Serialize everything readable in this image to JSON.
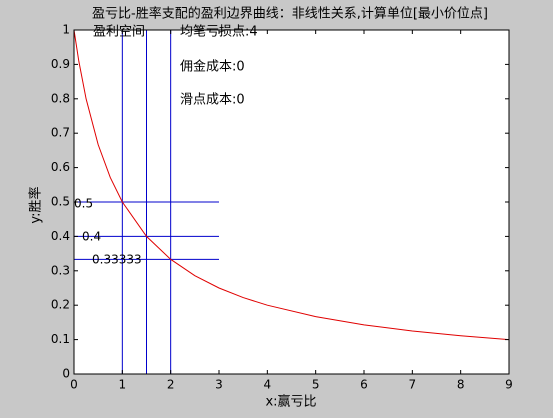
{
  "chart_data": {
    "type": "line",
    "title": "盈亏比-胜率支配的盈利边界曲线：非线性关系,计算单位[最小价位点]",
    "xlabel": "x:赢亏比",
    "ylabel": "y:胜率",
    "x": [
      0,
      0.1,
      0.25,
      0.5,
      0.75,
      1,
      1.5,
      2,
      2.5,
      3,
      3.5,
      4,
      5,
      6,
      7,
      8,
      9
    ],
    "series": [
      {
        "color": "#e00000",
        "values": [
          1,
          0.9091,
          0.8,
          0.6667,
          0.5714,
          0.5,
          0.4,
          0.3333,
          0.2857,
          0.25,
          0.2222,
          0.2,
          0.1667,
          0.1429,
          0.125,
          0.1111,
          0.1
        ]
      }
    ],
    "vlines": [
      1,
      1.5,
      2
    ],
    "hlines": [
      {
        "y": 0.5,
        "x_end": 3
      },
      {
        "y": 0.4,
        "x_end": 3
      },
      {
        "y": 0.33333,
        "x_end": 3
      }
    ],
    "ref_color": "#0000cc",
    "annotations": [
      "盈利空间",
      "均笔亏损点:4",
      "佣金成本:0",
      "滑点成本:0"
    ],
    "xlim": [
      0,
      9
    ],
    "xticks": [
      0,
      1,
      2,
      3,
      4,
      5,
      6,
      7,
      8,
      9
    ],
    "ylim": [
      0,
      1
    ],
    "yticks": [
      0,
      0.1,
      0.2,
      0.3,
      0.4,
      0.5,
      0.6,
      0.7,
      0.8,
      0.9,
      1
    ]
  }
}
